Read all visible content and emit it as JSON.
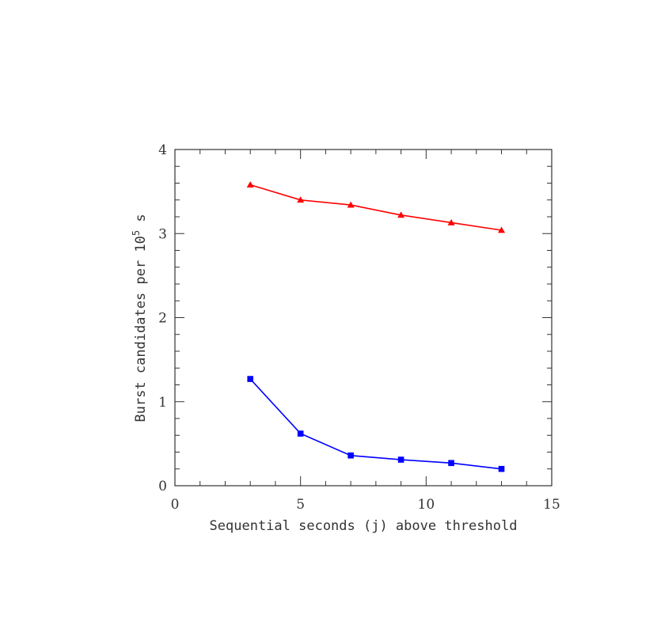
{
  "chart_data": {
    "type": "line",
    "xlabel": "Sequential seconds (j) above threshold",
    "ylabel": "Burst candidates per 10",
    "ylabel_exponent": "5",
    "ylabel_suffix": " s",
    "xlim": [
      0,
      15
    ],
    "ylim": [
      0,
      4
    ],
    "x_ticks": [
      "0",
      "5",
      "10",
      "15"
    ],
    "y_ticks": [
      "0",
      "1",
      "2",
      "3",
      "4"
    ],
    "grid": false,
    "series": [
      {
        "marker": "triangle",
        "color": "#ff0000",
        "x": [
          3,
          5,
          7,
          9,
          11,
          13
        ],
        "y": [
          3.58,
          3.4,
          3.34,
          3.22,
          3.13,
          3.04
        ]
      },
      {
        "marker": "square",
        "color": "#0000ff",
        "x": [
          3,
          5,
          7,
          9,
          11,
          13
        ],
        "y": [
          1.27,
          0.62,
          0.36,
          0.31,
          0.27,
          0.2
        ]
      }
    ]
  }
}
